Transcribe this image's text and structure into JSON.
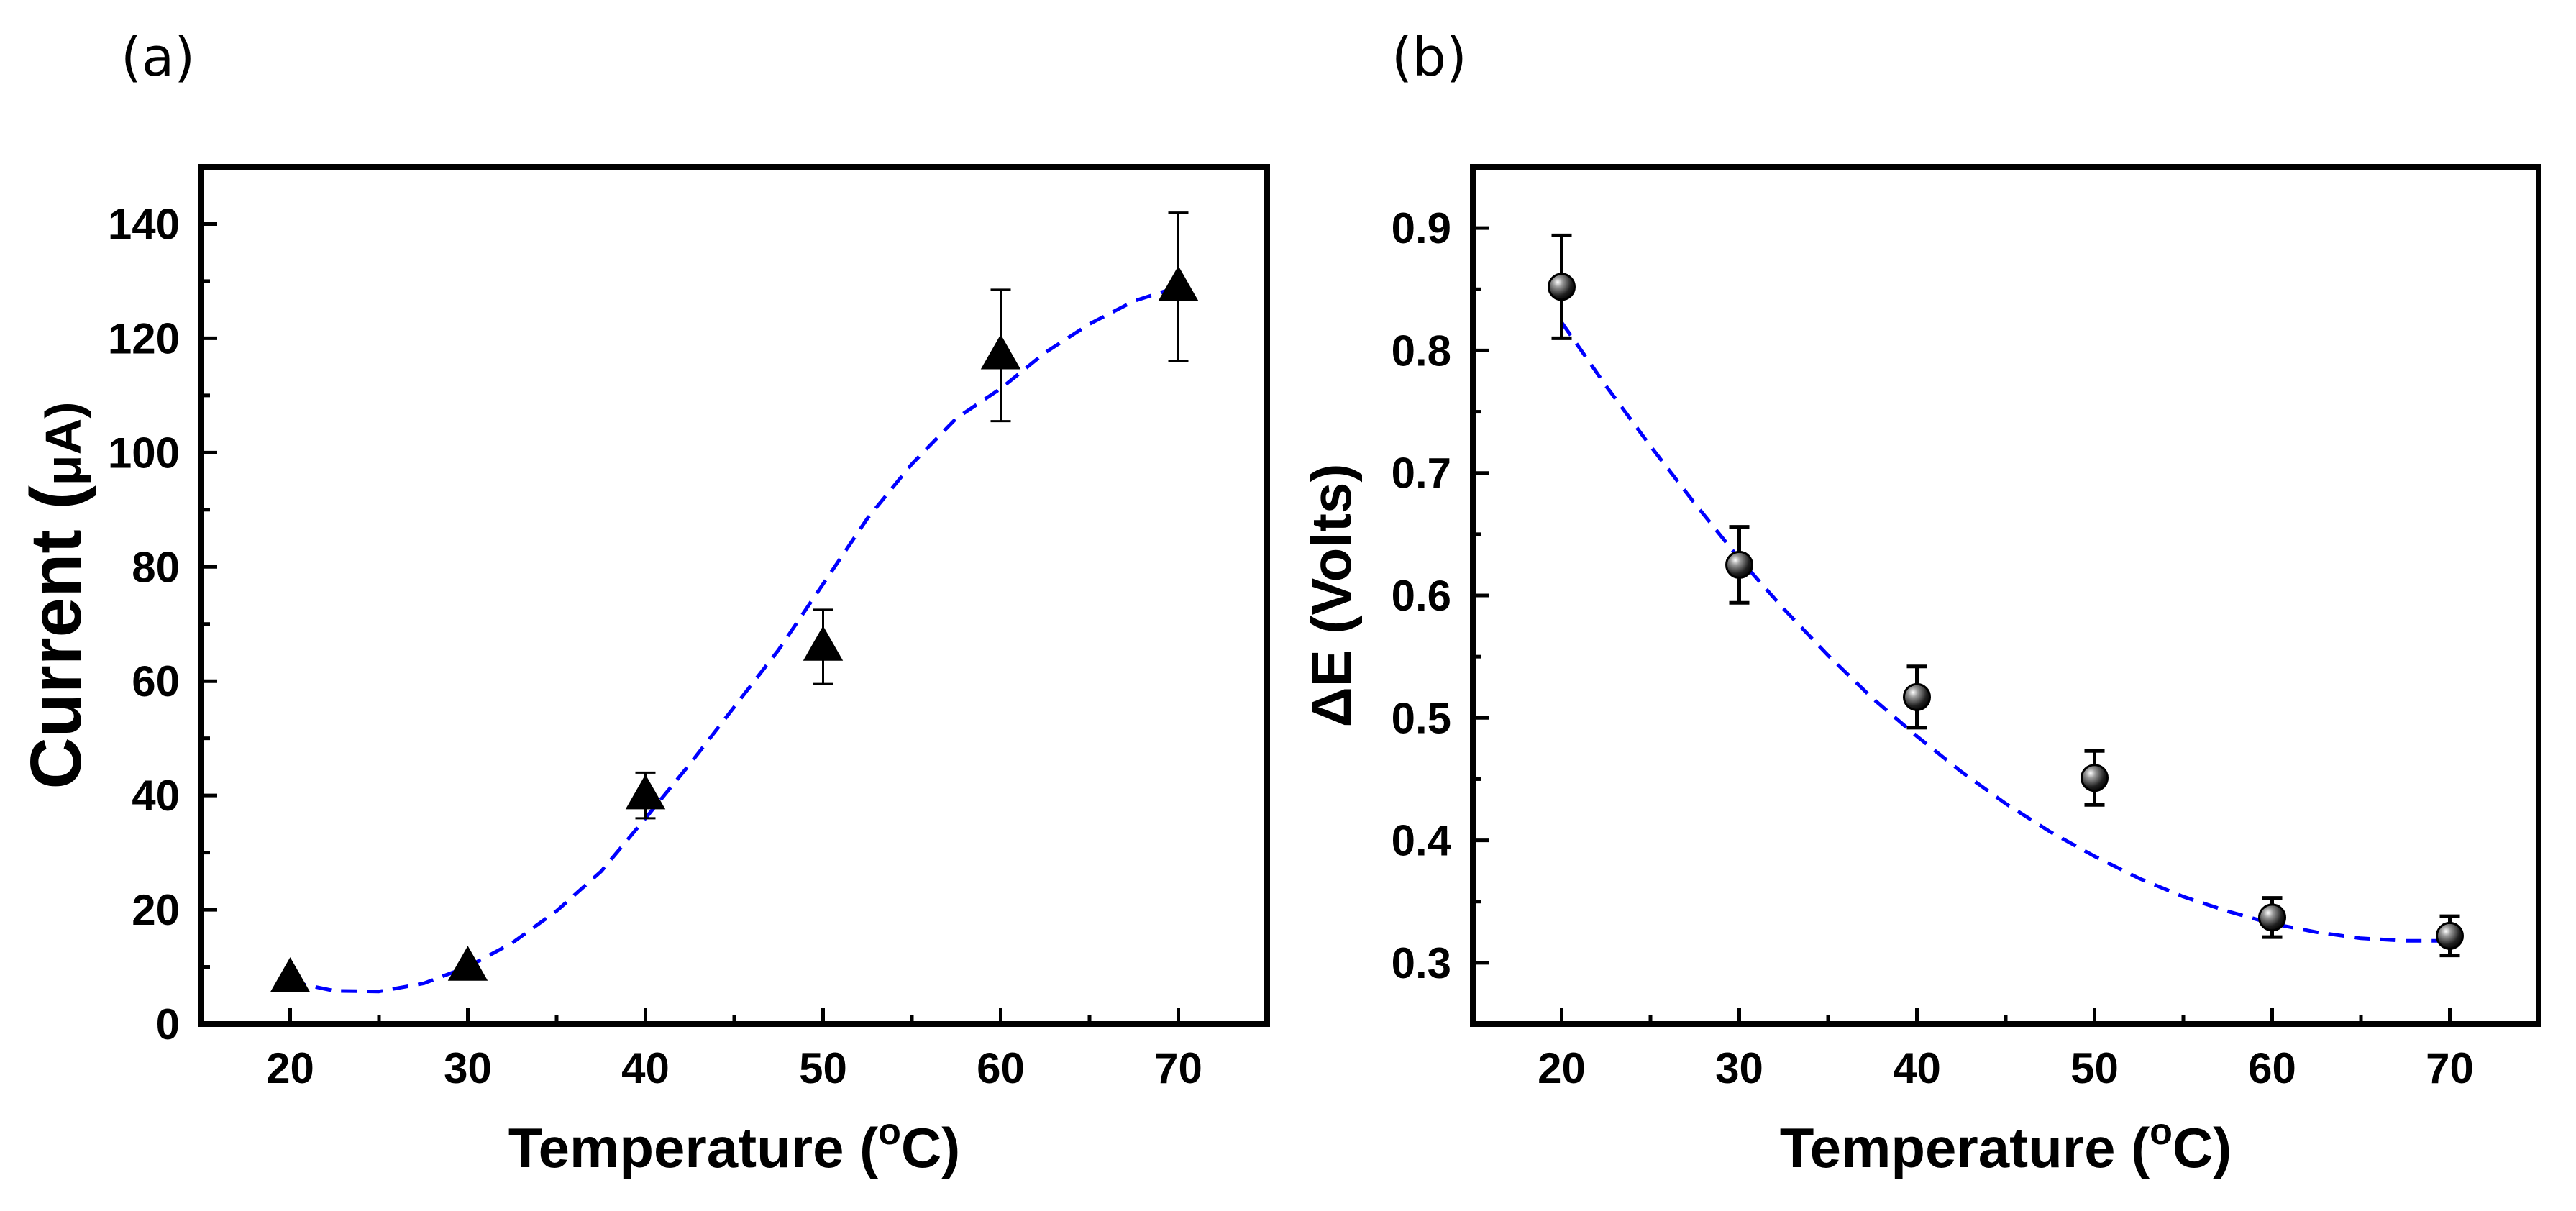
{
  "chart_data": [
    {
      "panel": "(a)",
      "type": "scatter",
      "marker": "triangle",
      "xlabel": "Temperature (°C)",
      "xlabel_parts": [
        "Temperature (",
        "o",
        "C)"
      ],
      "ylabel": "Current (μA)",
      "ylabel_parts": [
        "Current (",
        "μ",
        "A)"
      ],
      "xlim": [
        15,
        75
      ],
      "ylim": [
        0,
        150
      ],
      "xticks": [
        20,
        30,
        40,
        50,
        60,
        70
      ],
      "yticks": [
        0,
        20,
        40,
        60,
        80,
        100,
        120,
        140
      ],
      "x_minor_step": 5,
      "y_minor_step": 10,
      "series": [
        {
          "x": [
            20,
            30,
            40,
            50,
            60,
            70
          ],
          "y": [
            8,
            10,
            40,
            66,
            117,
            129
          ],
          "error": [
            0.5,
            0.5,
            4,
            6.5,
            11.5,
            13
          ]
        }
      ],
      "fit": {
        "style": "dashed",
        "color": "#0000ff",
        "x": [
          20,
          22.5,
          25,
          27.5,
          30,
          32.5,
          35,
          37.5,
          40,
          42.5,
          45,
          47.5,
          50,
          52.5,
          55,
          57.5,
          60,
          62.5,
          65,
          67.5,
          70
        ],
        "y": [
          7.4,
          5.8,
          5.7,
          7.1,
          10,
          14.2,
          19.8,
          26.7,
          36,
          45.5,
          55.5,
          65.5,
          77,
          88.5,
          98,
          106,
          111.2,
          117.5,
          122.5,
          126.5,
          129
        ]
      }
    },
    {
      "panel": "(b)",
      "type": "scatter",
      "marker": "sphere",
      "xlabel": "Temperature (°C)",
      "xlabel_parts": [
        "Temperature (",
        "o",
        "C)"
      ],
      "ylabel": "ΔE (Volts)",
      "xlim": [
        15,
        75
      ],
      "ylim": [
        0.25,
        0.95
      ],
      "xticks": [
        20,
        30,
        40,
        50,
        60,
        70
      ],
      "yticks": [
        "0.3",
        "0.4",
        "0.5",
        "0.6",
        "0.7",
        "0.8",
        "0.9"
      ],
      "x_minor_step": 5,
      "y_minor_step": 0.05,
      "series": [
        {
          "x": [
            20,
            30,
            40,
            50,
            60,
            70
          ],
          "y": [
            0.852,
            0.625,
            0.517,
            0.451,
            0.337,
            0.322
          ],
          "error": [
            0.042,
            0.031,
            0.025,
            0.022,
            0.016,
            0.016
          ]
        }
      ],
      "fit": {
        "style": "dashed",
        "color": "#0000ff",
        "x": [
          20,
          22.5,
          25,
          27.5,
          30,
          32.5,
          35,
          37.5,
          40,
          42.5,
          45,
          47.5,
          50,
          52.5,
          55,
          57.5,
          60,
          62.5,
          65,
          67.5,
          70
        ],
        "y": [
          0.823,
          0.771,
          0.722,
          0.675,
          0.63,
          0.589,
          0.551,
          0.516,
          0.485,
          0.456,
          0.43,
          0.407,
          0.387,
          0.369,
          0.354,
          0.342,
          0.332,
          0.325,
          0.32,
          0.318,
          0.318
        ]
      }
    }
  ]
}
